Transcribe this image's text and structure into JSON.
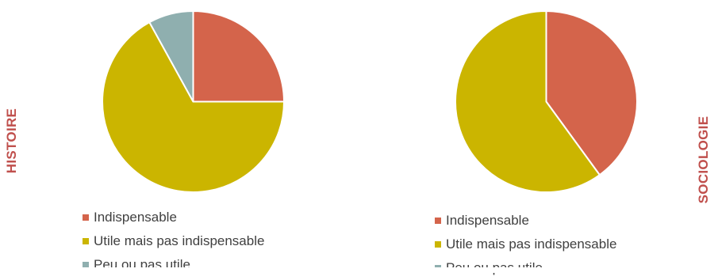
{
  "colors": {
    "indispensable": "#D4644B",
    "utile": "#CBB500",
    "peu": "#8FAFAF",
    "label": "#C0504D"
  },
  "chart_data": [
    {
      "type": "pie",
      "title": "HISTOIRE",
      "slices": [
        {
          "label": "Indispensable",
          "value": 25
        },
        {
          "label": "Utile mais pas indispensable",
          "value": 67
        },
        {
          "label": "Peu ou pas utile",
          "value": 8
        }
      ],
      "legend_position": "bottom"
    },
    {
      "type": "pie",
      "title": "SOCIOLOGIE",
      "slices": [
        {
          "label": "Indispensable",
          "value": 40
        },
        {
          "label": "Utile mais pas indispensable",
          "value": 60
        },
        {
          "label": "Peu ou pas utile",
          "value": 0
        }
      ],
      "legend_position": "bottom"
    }
  ]
}
